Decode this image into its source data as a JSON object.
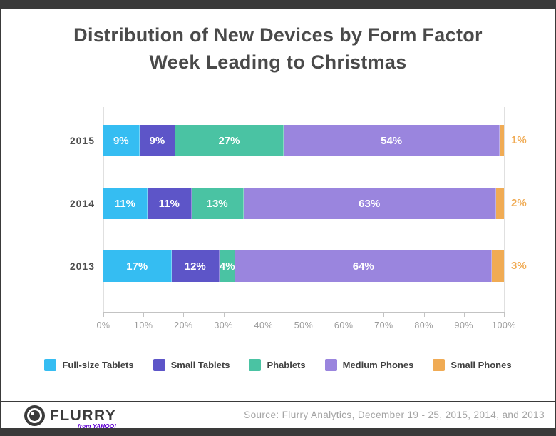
{
  "title": {
    "line1": "Distribution of New Devices by Form Factor",
    "line2": "Week Leading to Christmas"
  },
  "chart_data": {
    "type": "bar",
    "orientation": "horizontal",
    "stacked": true,
    "title": "Distribution of New Devices by Form Factor Week Leading to Christmas",
    "categories": [
      "2015",
      "2014",
      "2013"
    ],
    "series": [
      {
        "name": "Full-size Tablets",
        "color": "#35bdf2",
        "values": [
          9,
          11,
          17
        ]
      },
      {
        "name": "Small Tablets",
        "color": "#5d55c8",
        "values": [
          9,
          11,
          12
        ]
      },
      {
        "name": "Phablets",
        "color": "#4ac3a3",
        "values": [
          27,
          13,
          4
        ]
      },
      {
        "name": "Medium Phones",
        "color": "#9a85de",
        "values": [
          54,
          63,
          64
        ]
      },
      {
        "name": "Small Phones",
        "color": "#f0ab54",
        "values": [
          1,
          2,
          3
        ],
        "label_outside": true
      }
    ],
    "value_suffix": "%",
    "xlim": [
      0,
      100
    ],
    "x_ticks": [
      "0%",
      "10%",
      "20%",
      "30%",
      "40%",
      "50%",
      "60%",
      "70%",
      "80%",
      "90%",
      "100%"
    ],
    "grid": false,
    "legend_position": "bottom"
  },
  "footer": {
    "logo_text": "FLURRY",
    "logo_sub": "from YAHOO!",
    "source": "Source: Flurry Analytics, December 19 - 25, 2015, 2014, and 2013"
  }
}
